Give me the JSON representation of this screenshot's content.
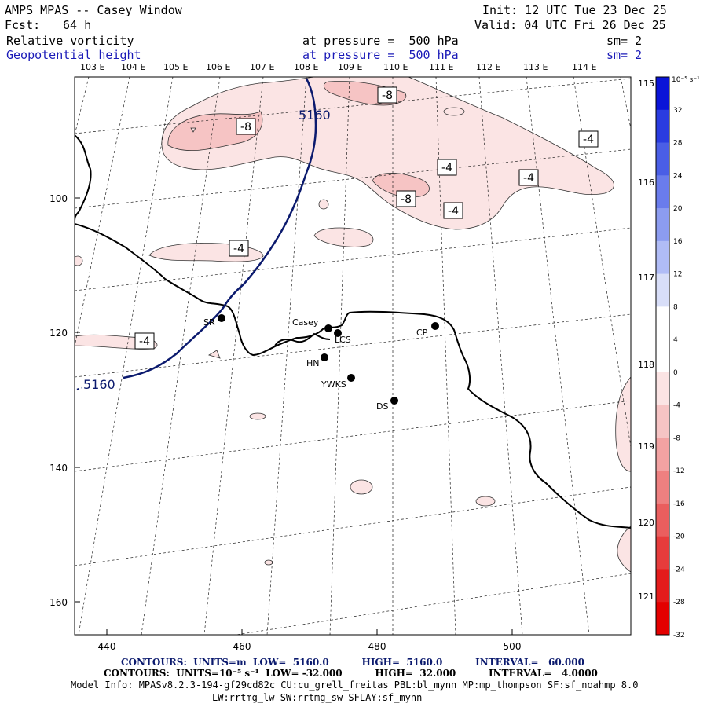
{
  "header": {
    "title": "AMPS MPAS -- Casey Window",
    "fcst_label": "Fcst:",
    "fcst_value": "64 h",
    "init": "Init: 12 UTC Tue 23 Dec 25",
    "valid": "Valid: 04 UTC Fri 26 Dec 25",
    "field1_name": "Relative vorticity",
    "field1_pressure": "at pressure =  500 hPa",
    "field1_sm": "sm= 2",
    "field2_name": "Geopotential height",
    "field2_pressure": "at pressure =  500 hPa",
    "field2_sm": "sm= 2"
  },
  "axes": {
    "x_ticks": [
      "440",
      "460",
      "480",
      "500"
    ],
    "y_ticks": [
      "100",
      "120",
      "140",
      "160"
    ],
    "lon_top": [
      "103 E",
      "104 E",
      "105 E",
      "106 E",
      "107 E",
      "108 E",
      "109 E",
      "110 E",
      "111 E",
      "112 E",
      "113 E",
      "114 E"
    ],
    "lon_right": [
      "115 E",
      "116 E",
      "117 E",
      "118 E",
      "119 E",
      "120 E",
      "121 E"
    ]
  },
  "colorbar": {
    "units": "10⁻⁵ s⁻¹",
    "labels": [
      "32",
      "28",
      "24",
      "20",
      "16",
      "12",
      "8",
      "4",
      "0",
      "-4",
      "-8",
      "-12",
      "-16",
      "-20",
      "-24",
      "-28",
      "-32"
    ],
    "colors": [
      "#0a14d8",
      "#2a3ce0",
      "#4a5ee6",
      "#6a7cec",
      "#8c9cf0",
      "#b0bcf6",
      "#d8def8",
      "#ffffff",
      "#ffffff",
      "#fbe4e4",
      "#f6c4c4",
      "#f2a2a2",
      "#ee8080",
      "#ea5e5e",
      "#e63c3c",
      "#e41c1c",
      "#e40000"
    ]
  },
  "contours": {
    "height_label": "5160",
    "vort_labels": [
      "-8",
      "-8",
      "-8",
      "-4",
      "-4",
      "-4",
      "-4",
      "-4",
      "-4"
    ]
  },
  "stations": [
    {
      "name": "SR"
    },
    {
      "name": "Casey"
    },
    {
      "name": "LCS"
    },
    {
      "name": "HN"
    },
    {
      "name": "YWKS"
    },
    {
      "name": "CP"
    },
    {
      "name": "DS"
    }
  ],
  "footer": {
    "line1": "CONTOURS:  UNITS=m  LOW=  5160.0          HIGH=  5160.0          INTERVAL=   60.000",
    "line2": "CONTOURS:  UNITS=10⁻⁵ s⁻¹  LOW= -32.000          HIGH=  32.000          INTERVAL=   4.0000",
    "model_info": "Model Info: MPASv8.2.3-194-gf29cd82c CU:cu_grell_freitas PBL:bl_mynn MP:mp_thompson SF:sf_noahmp 8.0",
    "model_info2": "LW:rrtmg_lw SW:rrtmg_sw SFLAY:sf_mynn"
  }
}
